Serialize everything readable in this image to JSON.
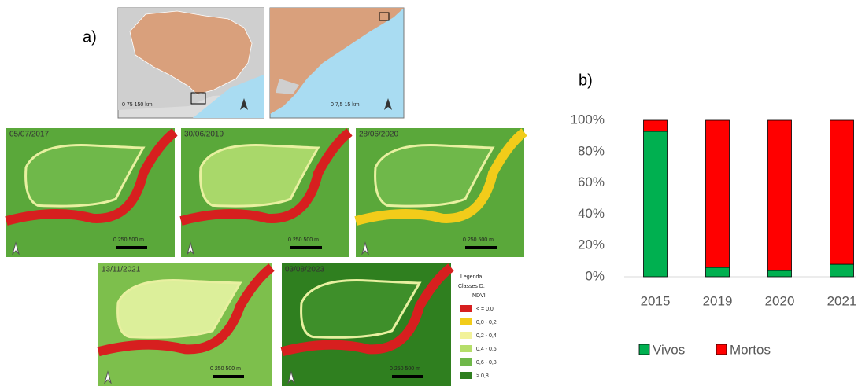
{
  "panel_labels": [
    "a)",
    "b)"
  ],
  "locator_scales": [
    "0  75  150 km",
    "0  7,5  15 km"
  ],
  "maps": [
    {
      "date": "05/07/2017",
      "river_color": "#d71f1f",
      "bg": "#5aa83a",
      "inner": "#6fb84a"
    },
    {
      "date": "30/06/2019",
      "river_color": "#d71f1f",
      "bg": "#5aa83a",
      "inner": "#a9d86a"
    },
    {
      "date": "28/06/2020",
      "river_color": "#f2cc1a",
      "bg": "#5aa83a",
      "inner": "#6fb84a"
    },
    {
      "date": "13/11/2021",
      "river_color": "#d71f1f",
      "bg": "#7dbf4c",
      "inner": "#dcef9a"
    },
    {
      "date": "03/08/2023",
      "river_color": "#d71f1f",
      "bg": "#2f7f1f",
      "inner": "#3e8f2a"
    }
  ],
  "map_scale": "0   250   500 m",
  "ndvi_legend": {
    "title": "Legenda",
    "subtitle": "Classes D:",
    "heading": "NDVI",
    "classes": [
      {
        "label": "< = 0,0",
        "color": "#d71f1f"
      },
      {
        "label": "0,0 - 0,2",
        "color": "#f2cc1a"
      },
      {
        "label": "0,2 - 0,4",
        "color": "#f2f29a"
      },
      {
        "label": "0,4 - 0,6",
        "color": "#b5de6a"
      },
      {
        "label": "0,6 - 0,8",
        "color": "#6fb84a"
      },
      {
        "label": "> 0,8",
        "color": "#2f7f1f"
      }
    ]
  },
  "chart_data": {
    "type": "stacked_bar",
    "categories": [
      "2015",
      "2019",
      "2020",
      "2021"
    ],
    "series": [
      {
        "name": "Vivos",
        "color": "#00b050",
        "values": [
          93,
          6,
          4,
          8
        ]
      },
      {
        "name": "Mortos",
        "color": "#ff0000",
        "values": [
          7,
          94,
          96,
          92
        ]
      }
    ],
    "ylim": [
      0,
      100
    ],
    "yticks": [
      {
        "value": 0,
        "label": "0%"
      },
      {
        "value": 20,
        "label": "20%"
      },
      {
        "value": 40,
        "label": "40%"
      },
      {
        "value": 60,
        "label": "60%"
      },
      {
        "value": 80,
        "label": "80%"
      },
      {
        "value": 100,
        "label": "100%"
      }
    ],
    "legend": "bottom"
  }
}
